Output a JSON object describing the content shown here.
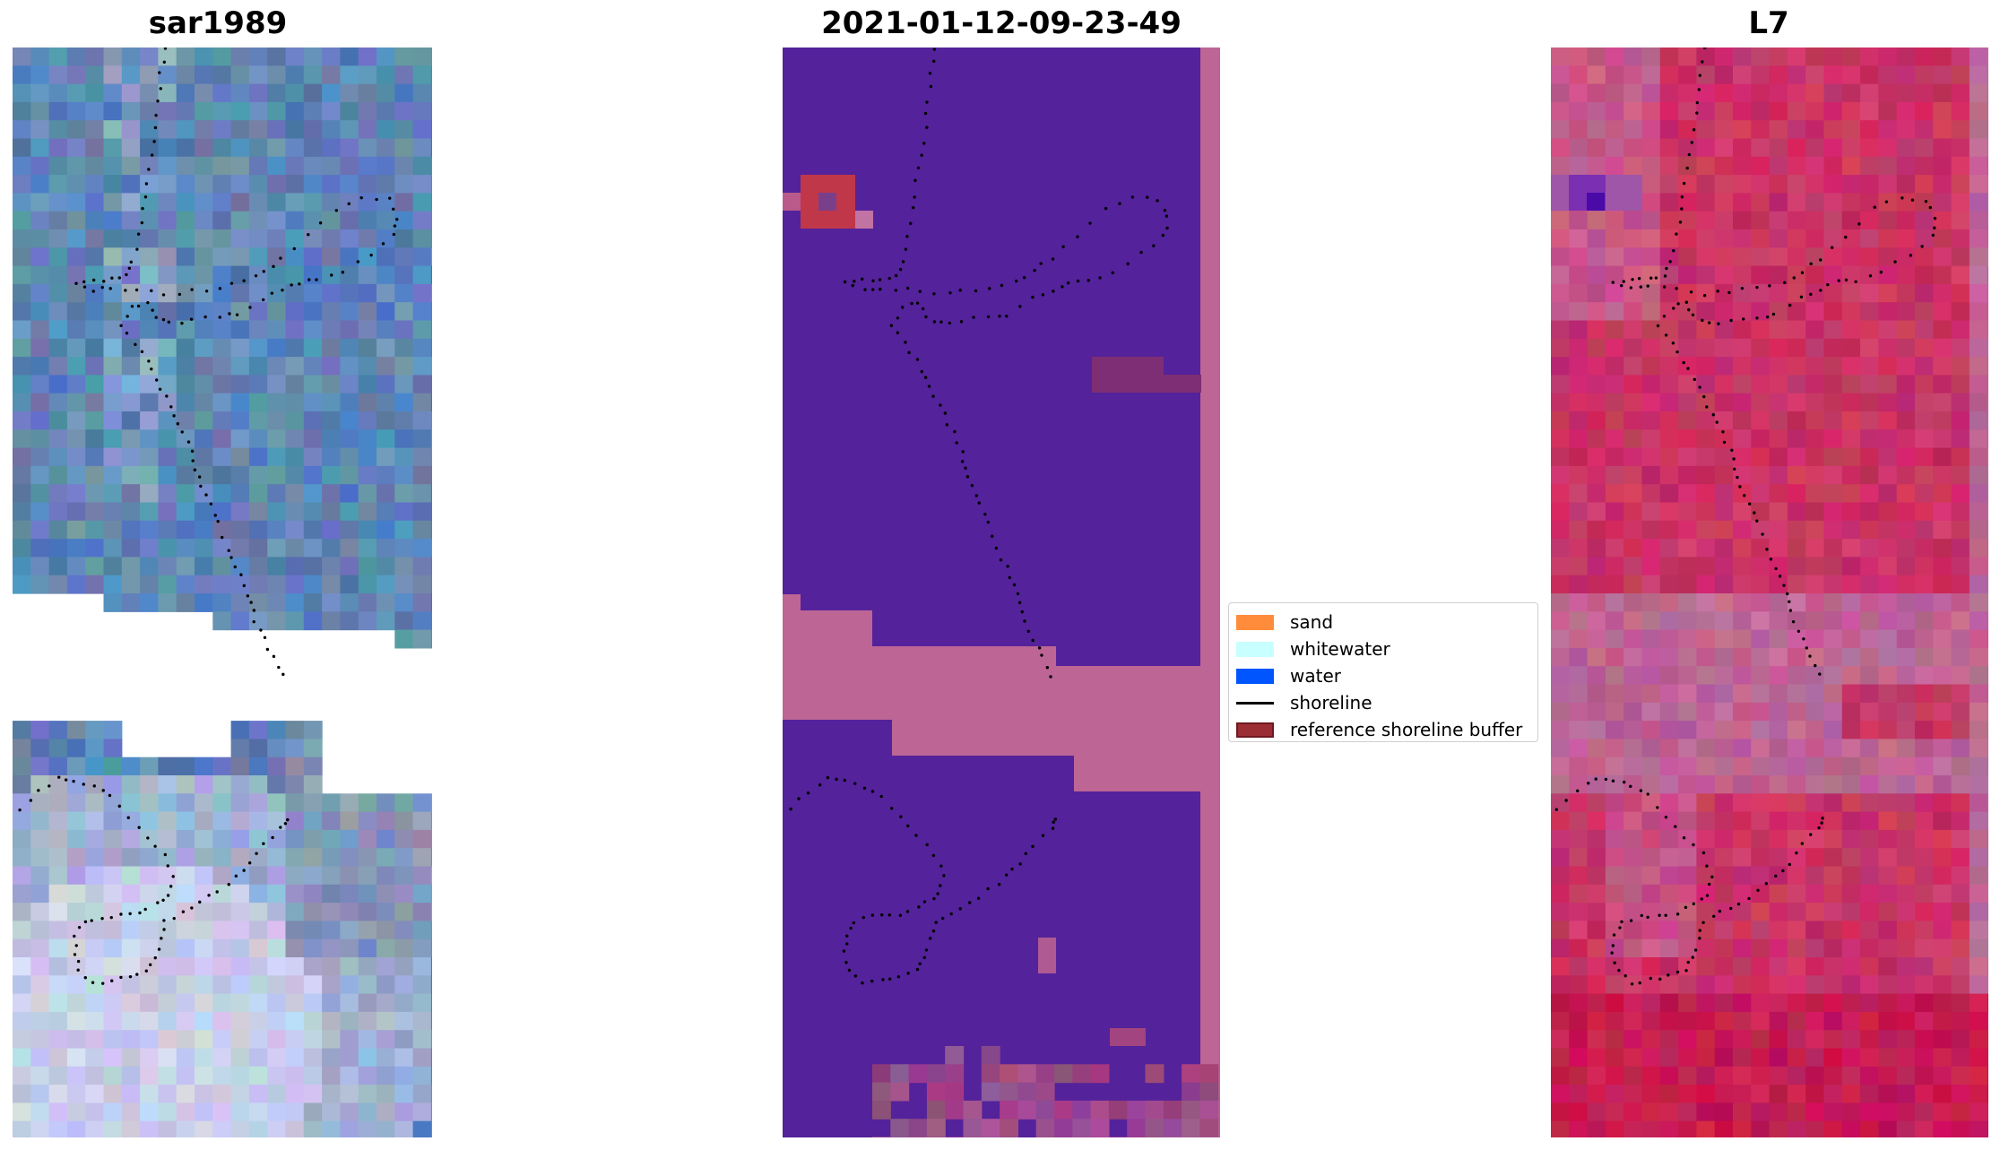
{
  "titles": {
    "left": "sar1989",
    "middle": "2021-01-12-09-23-49",
    "right": "L7"
  },
  "legend": {
    "items": [
      {
        "label": "sand",
        "color": "#ff8c3a",
        "kind": "patch"
      },
      {
        "label": "whitewater",
        "color": "#c8ffff",
        "kind": "patch"
      },
      {
        "label": "water",
        "color": "#0055ff",
        "kind": "patch"
      },
      {
        "label": "shoreline",
        "color": "#000000",
        "kind": "line"
      },
      {
        "label": "reference shoreline buffer",
        "color": "#9b2d35",
        "kind": "patch-edge"
      }
    ]
  },
  "colors": {
    "classified_background": "#54229a",
    "reference_buffer_overlay": "#bd6595",
    "nodata_strip": "#bd6595",
    "rgb_base": "#5f86b4",
    "ndwi_base": "#c93465",
    "shoreline": "#000000"
  }
}
